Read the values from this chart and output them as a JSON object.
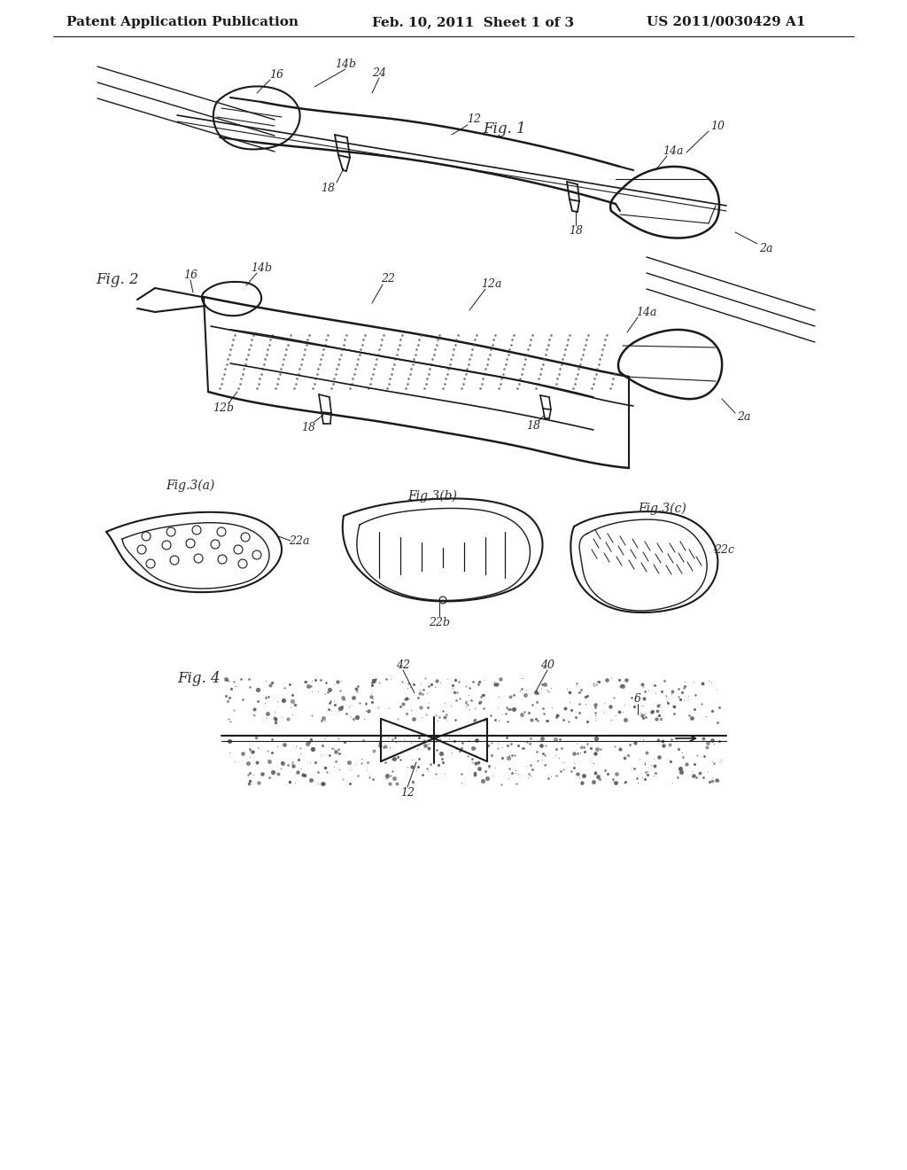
{
  "background_color": "#ffffff",
  "header_left": "Patent Application Publication",
  "header_center": "Feb. 10, 2011  Sheet 1 of 3",
  "header_right": "US 2011/0030429 A1",
  "header_fontsize": 11,
  "line_color": "#1a1a1a",
  "annotation_color": "#2a2a2a",
  "annotation_fontsize": 9
}
